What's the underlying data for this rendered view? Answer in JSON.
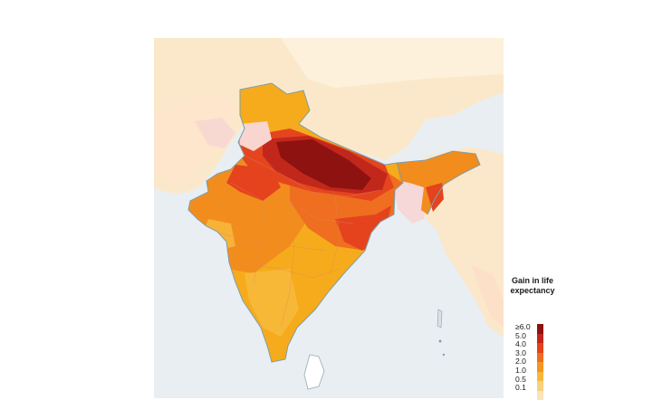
{
  "legend": {
    "title_line1": "Gain in life",
    "title_line2": "expectancy",
    "labels": [
      "≥6.0",
      "5.0",
      "4.0",
      "3.0",
      "2.0",
      "1.0",
      "0.5",
      "0.1"
    ],
    "colors": [
      "#8e1210",
      "#c1261c",
      "#e4431e",
      "#f06d1f",
      "#f4961f",
      "#f7b838",
      "#f9d07c",
      "#fbe3ba"
    ]
  },
  "map": {
    "water_color": "#e9eef2",
    "neighbor_colors": [
      "#fbe8ca",
      "#fde0c8",
      "#f6d8d8"
    ]
  }
}
